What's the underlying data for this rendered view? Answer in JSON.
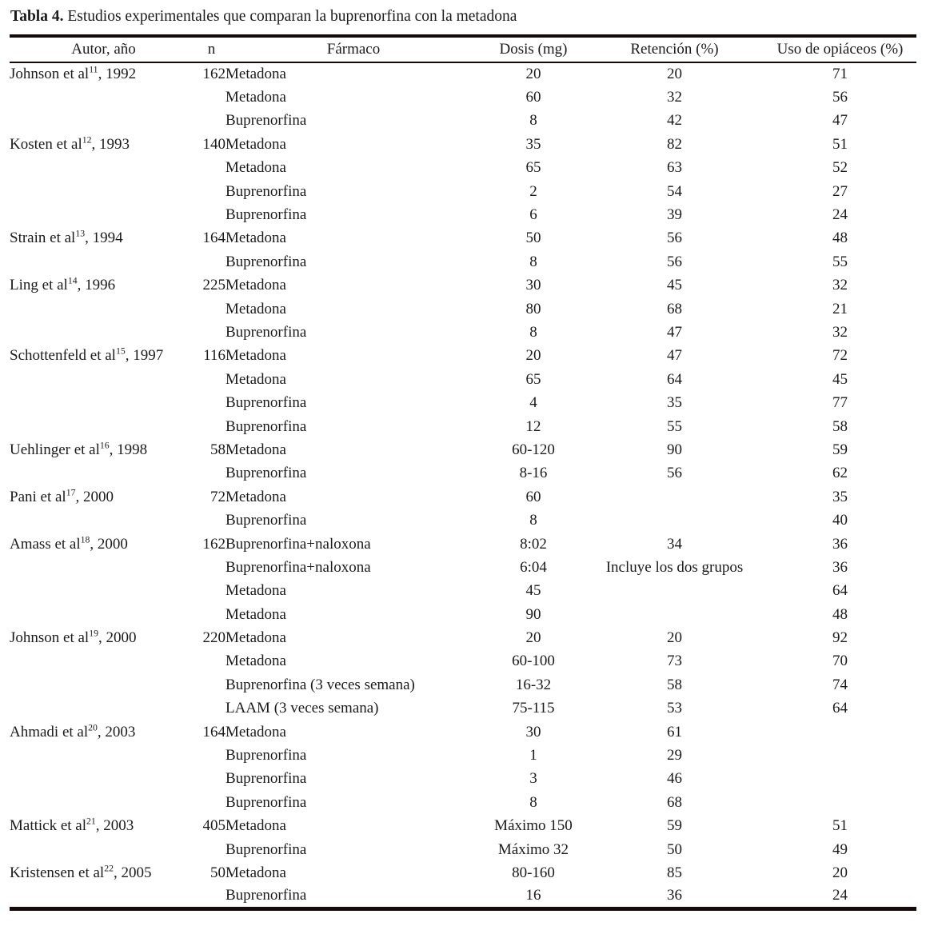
{
  "page": {
    "background_color": "#ffffff",
    "text_color": "#1b1b1b",
    "rule_color": "#140a0a"
  },
  "caption": {
    "label": "Tabla 4.",
    "text": "Estudios experimentales que comparan la buprenorfina con la metadona"
  },
  "table": {
    "columns": [
      "Autor, año",
      "n",
      "Fármaco",
      "Dosis (mg)",
      "Retención (%)",
      "Uso de opiáceos (%)"
    ],
    "rows": [
      {
        "autor": "Johnson et al",
        "ref": "11",
        "year": "1992",
        "n": "162",
        "farmaco": "Metadona",
        "dosis": "20",
        "retencion": "20",
        "uso": "71"
      },
      {
        "autor": "",
        "ref": "",
        "year": "",
        "n": "",
        "farmaco": "Metadona",
        "dosis": "60",
        "retencion": "32",
        "uso": "56"
      },
      {
        "autor": "",
        "ref": "",
        "year": "",
        "n": "",
        "farmaco": "Buprenorfina",
        "dosis": "8",
        "retencion": "42",
        "uso": "47"
      },
      {
        "autor": "Kosten et al",
        "ref": "12",
        "year": "1993",
        "n": "140",
        "farmaco": "Metadona",
        "dosis": "35",
        "retencion": "82",
        "uso": "51"
      },
      {
        "autor": "",
        "ref": "",
        "year": "",
        "n": "",
        "farmaco": "Metadona",
        "dosis": "65",
        "retencion": "63",
        "uso": "52"
      },
      {
        "autor": "",
        "ref": "",
        "year": "",
        "n": "",
        "farmaco": "Buprenorfina",
        "dosis": "2",
        "retencion": "54",
        "uso": "27"
      },
      {
        "autor": "",
        "ref": "",
        "year": "",
        "n": "",
        "farmaco": "Buprenorfina",
        "dosis": "6",
        "retencion": "39",
        "uso": "24"
      },
      {
        "autor": "Strain et al",
        "ref": "13",
        "year": "1994",
        "n": "164",
        "farmaco": "Metadona",
        "dosis": "50",
        "retencion": "56",
        "uso": "48"
      },
      {
        "autor": "",
        "ref": "",
        "year": "",
        "n": "",
        "farmaco": "Buprenorfina",
        "dosis": "8",
        "retencion": "56",
        "uso": "55"
      },
      {
        "autor": "Ling et al",
        "ref": "14",
        "year": "1996",
        "n": "225",
        "farmaco": "Metadona",
        "dosis": "30",
        "retencion": "45",
        "uso": "32"
      },
      {
        "autor": "",
        "ref": "",
        "year": "",
        "n": "",
        "farmaco": "Metadona",
        "dosis": "80",
        "retencion": "68",
        "uso": "21"
      },
      {
        "autor": "",
        "ref": "",
        "year": "",
        "n": "",
        "farmaco": "Buprenorfina",
        "dosis": "8",
        "retencion": "47",
        "uso": "32"
      },
      {
        "autor": "Schottenfeld et al",
        "ref": "15",
        "year": "1997",
        "n": "116",
        "farmaco": "Metadona",
        "dosis": "20",
        "retencion": "47",
        "uso": "72"
      },
      {
        "autor": "",
        "ref": "",
        "year": "",
        "n": "",
        "farmaco": "Metadona",
        "dosis": "65",
        "retencion": "64",
        "uso": "45"
      },
      {
        "autor": "",
        "ref": "",
        "year": "",
        "n": "",
        "farmaco": "Buprenorfina",
        "dosis": "4",
        "retencion": "35",
        "uso": "77"
      },
      {
        "autor": "",
        "ref": "",
        "year": "",
        "n": "",
        "farmaco": "Buprenorfina",
        "dosis": "12",
        "retencion": "55",
        "uso": "58"
      },
      {
        "autor": "Uehlinger et al",
        "ref": "16",
        "year": "1998",
        "n": "58",
        "farmaco": "Metadona",
        "dosis": "60-120",
        "retencion": "90",
        "uso": "59"
      },
      {
        "autor": "",
        "ref": "",
        "year": "",
        "n": "",
        "farmaco": "Buprenorfina",
        "dosis": "8-16",
        "retencion": "56",
        "uso": "62"
      },
      {
        "autor": "Pani et al",
        "ref": "17",
        "year": "2000",
        "n": "72",
        "farmaco": "Metadona",
        "dosis": "60",
        "retencion": "",
        "uso": "35"
      },
      {
        "autor": "",
        "ref": "",
        "year": "",
        "n": "",
        "farmaco": "Buprenorfina",
        "dosis": "8",
        "retencion": "",
        "uso": "40"
      },
      {
        "autor": "Amass et al",
        "ref": "18",
        "year": "2000",
        "n": "162",
        "farmaco": "Buprenorfina+naloxona",
        "dosis": "8:02",
        "retencion": "34",
        "uso": "36"
      },
      {
        "autor": "",
        "ref": "",
        "year": "",
        "n": "",
        "farmaco": "Buprenorfina+naloxona",
        "dosis": "6:04",
        "retencion": "Incluye los dos grupos",
        "uso": "36"
      },
      {
        "autor": "",
        "ref": "",
        "year": "",
        "n": "",
        "farmaco": "Metadona",
        "dosis": "45",
        "retencion": "",
        "uso": "64"
      },
      {
        "autor": "",
        "ref": "",
        "year": "",
        "n": "",
        "farmaco": "Metadona",
        "dosis": "90",
        "retencion": "",
        "uso": "48"
      },
      {
        "autor": "Johnson et al",
        "ref": "19",
        "year": "2000",
        "n": "220",
        "farmaco": "Metadona",
        "dosis": "20",
        "retencion": "20",
        "uso": "92"
      },
      {
        "autor": "",
        "ref": "",
        "year": "",
        "n": "",
        "farmaco": "Metadona",
        "dosis": "60-100",
        "retencion": "73",
        "uso": "70"
      },
      {
        "autor": "",
        "ref": "",
        "year": "",
        "n": "",
        "farmaco": "Buprenorfina (3 veces semana)",
        "dosis": "16-32",
        "retencion": "58",
        "uso": "74"
      },
      {
        "autor": "",
        "ref": "",
        "year": "",
        "n": "",
        "farmaco": "LAAM (3 veces semana)",
        "dosis": "75-115",
        "retencion": "53",
        "uso": "64"
      },
      {
        "autor": "Ahmadi et al",
        "ref": "20",
        "year": "2003",
        "n": "164",
        "farmaco": "Metadona",
        "dosis": "30",
        "retencion": "61",
        "uso": ""
      },
      {
        "autor": "",
        "ref": "",
        "year": "",
        "n": "",
        "farmaco": "Buprenorfina",
        "dosis": "1",
        "retencion": "29",
        "uso": ""
      },
      {
        "autor": "",
        "ref": "",
        "year": "",
        "n": "",
        "farmaco": "Buprenorfina",
        "dosis": "3",
        "retencion": "46",
        "uso": ""
      },
      {
        "autor": "",
        "ref": "",
        "year": "",
        "n": "",
        "farmaco": "Buprenorfina",
        "dosis": "8",
        "retencion": "68",
        "uso": ""
      },
      {
        "autor": "Mattick et al",
        "ref": "21",
        "year": "2003",
        "n": "405",
        "farmaco": "Metadona",
        "dosis": "Máximo 150",
        "retencion": "59",
        "uso": "51"
      },
      {
        "autor": "",
        "ref": "",
        "year": "",
        "n": "",
        "farmaco": "Buprenorfina",
        "dosis": "Máximo 32",
        "retencion": "50",
        "uso": "49"
      },
      {
        "autor": "Kristensen et al",
        "ref": "22",
        "year": "2005",
        "n": "50",
        "farmaco": "Metadona",
        "dosis": "80-160",
        "retencion": "85",
        "uso": "20"
      },
      {
        "autor": "",
        "ref": "",
        "year": "",
        "n": "",
        "farmaco": "Buprenorfina",
        "dosis": "16",
        "retencion": "36",
        "uso": "24"
      }
    ]
  }
}
